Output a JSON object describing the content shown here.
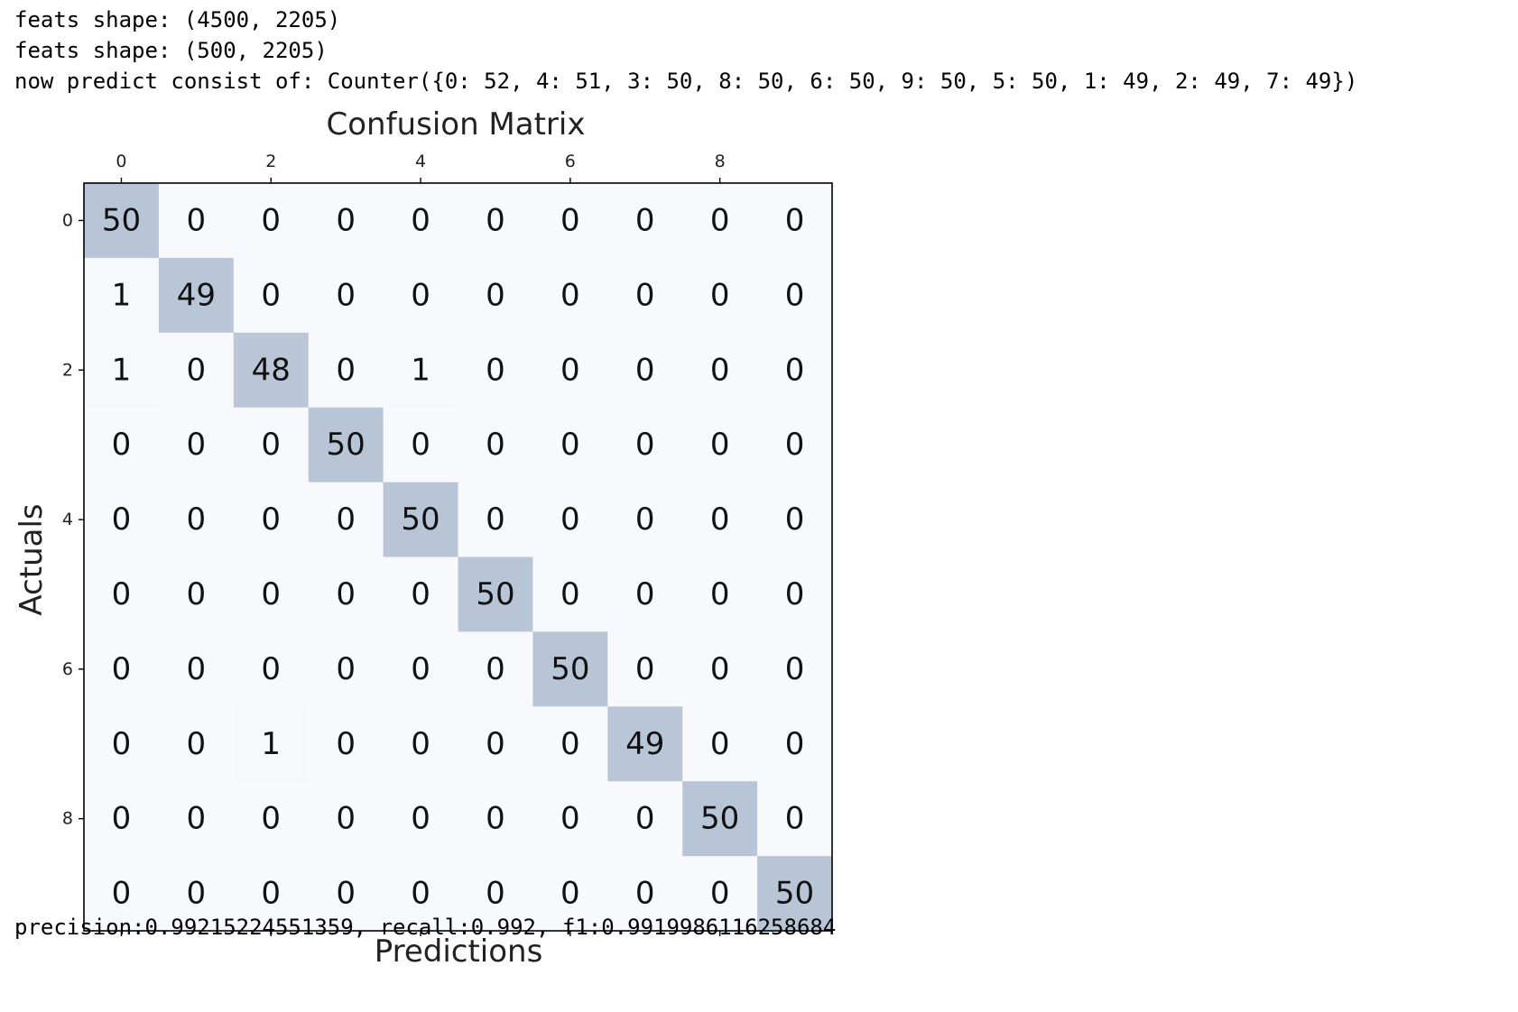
{
  "output": {
    "lines": [
      "feats shape: (4500, 2205)",
      "feats shape: (500, 2205)",
      "now predict consist of: Counter({0: 52, 4: 51, 3: 50, 8: 50, 6: 50, 9: 50, 5: 50, 1: 49, 2: 49, 7: 49})"
    ],
    "metrics_line": "precision:0.99215224551359, recall:0.992, f1:0.9919986116258684"
  },
  "colors": {
    "diagonal_max": "#b8c5d6",
    "background_cell": "#f7f9fc"
  },
  "chart_data": {
    "type": "heatmap",
    "title": "Confusion Matrix",
    "xlabel": "Predictions",
    "ylabel": "Actuals",
    "x_ticks": [
      0,
      2,
      4,
      6,
      8
    ],
    "y_ticks": [
      0,
      2,
      4,
      6,
      8
    ],
    "x_tick_position": "top",
    "colormap": "Blues",
    "alpha": 0.3,
    "matrix": [
      [
        50,
        0,
        0,
        0,
        0,
        0,
        0,
        0,
        0,
        0
      ],
      [
        1,
        49,
        0,
        0,
        0,
        0,
        0,
        0,
        0,
        0
      ],
      [
        1,
        0,
        48,
        0,
        1,
        0,
        0,
        0,
        0,
        0
      ],
      [
        0,
        0,
        0,
        50,
        0,
        0,
        0,
        0,
        0,
        0
      ],
      [
        0,
        0,
        0,
        0,
        50,
        0,
        0,
        0,
        0,
        0
      ],
      [
        0,
        0,
        0,
        0,
        0,
        50,
        0,
        0,
        0,
        0
      ],
      [
        0,
        0,
        0,
        0,
        0,
        0,
        50,
        0,
        0,
        0
      ],
      [
        0,
        0,
        1,
        0,
        0,
        0,
        0,
        49,
        0,
        0
      ],
      [
        0,
        0,
        0,
        0,
        0,
        0,
        0,
        0,
        50,
        0
      ],
      [
        0,
        0,
        0,
        0,
        0,
        0,
        0,
        0,
        0,
        50
      ]
    ]
  }
}
